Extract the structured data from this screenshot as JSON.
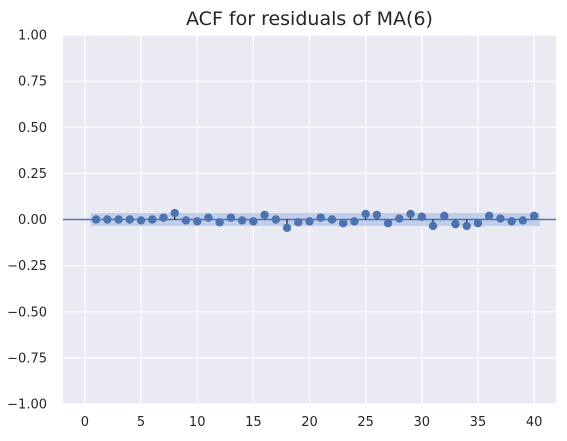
{
  "chart_data": {
    "type": "scatter",
    "title": "ACF for residuals of MA(6)",
    "xlabel": "",
    "ylabel": "",
    "xlim": [
      -1.95,
      41.95
    ],
    "ylim": [
      -1.0,
      1.0
    ],
    "xticks": [
      0,
      5,
      10,
      15,
      20,
      25,
      30,
      35,
      40
    ],
    "xtick_labels": [
      "0",
      "5",
      "10",
      "15",
      "20",
      "25",
      "30",
      "35",
      "40"
    ],
    "yticks": [
      1.0,
      0.75,
      0.5,
      0.25,
      0.0,
      -0.25,
      -0.5,
      -0.75,
      -1.0
    ],
    "ytick_labels": [
      "1.00",
      "0.75",
      "0.50",
      "0.25",
      "0.00",
      "−0.25",
      "−0.50",
      "−0.75",
      "−1.00"
    ],
    "grid": true,
    "background": "#eaeaf2",
    "marker_color": "#4c72b0",
    "zero_line_color": "#4c72b0",
    "confidence_band": {
      "lower": -0.035,
      "upper": 0.035,
      "color": "#b0c4e8",
      "x_range": [
        0.5,
        40.5
      ]
    },
    "x": [
      1,
      2,
      3,
      4,
      5,
      6,
      7,
      8,
      9,
      10,
      11,
      12,
      13,
      14,
      15,
      16,
      17,
      18,
      19,
      20,
      21,
      22,
      23,
      24,
      25,
      26,
      27,
      28,
      29,
      30,
      31,
      32,
      33,
      34,
      35,
      36,
      37,
      38,
      39,
      40
    ],
    "values": [
      0.0,
      0.0,
      0.0,
      0.0,
      -0.005,
      0.0,
      0.01,
      0.035,
      -0.005,
      -0.01,
      0.01,
      -0.015,
      0.01,
      -0.005,
      -0.01,
      0.025,
      0.0,
      -0.045,
      -0.015,
      -0.01,
      0.01,
      0.0,
      -0.02,
      -0.01,
      0.03,
      0.025,
      -0.02,
      0.005,
      0.03,
      0.015,
      -0.035,
      0.02,
      -0.025,
      -0.035,
      -0.02,
      0.02,
      0.005,
      -0.01,
      -0.005,
      0.02
    ]
  }
}
